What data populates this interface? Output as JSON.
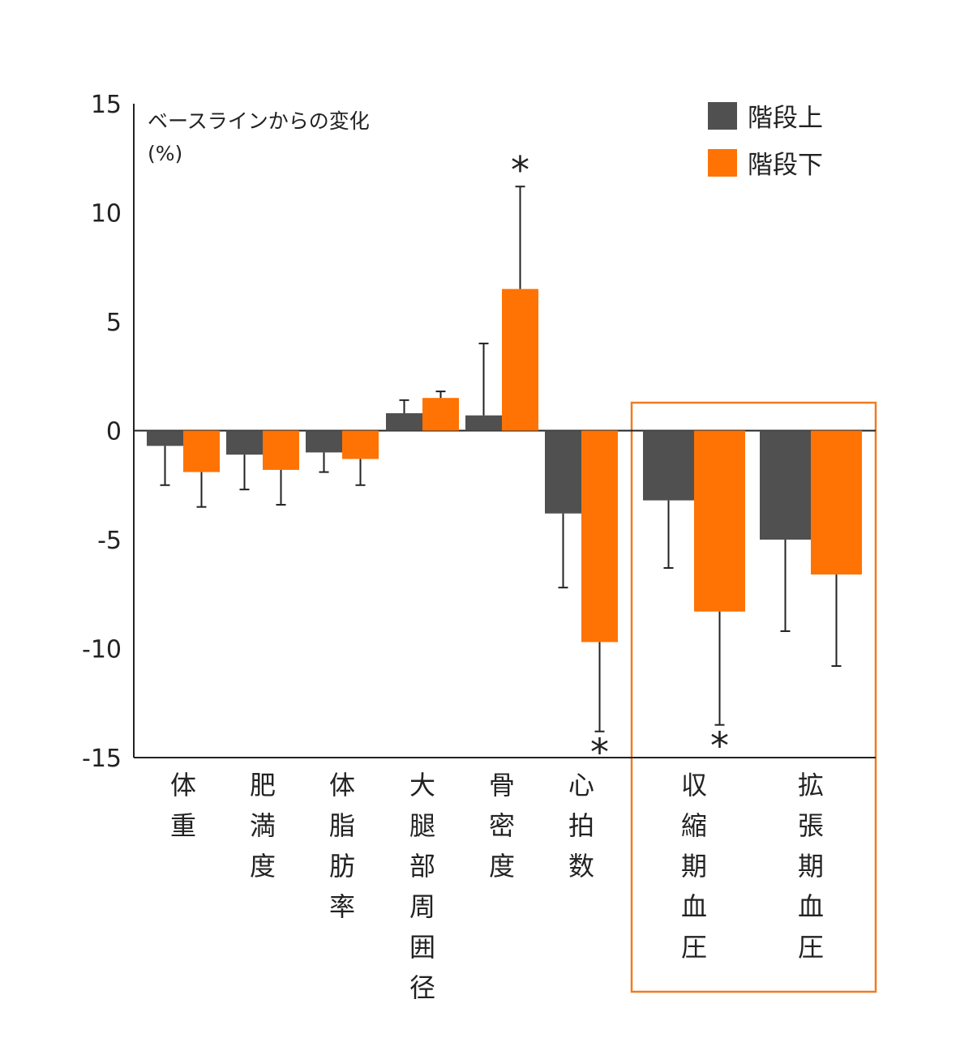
{
  "chart_data": {
    "type": "bar",
    "ylabel_line1": "ベースラインからの変化",
    "ylabel_line2": "(%)",
    "ylim": [
      -15,
      15
    ],
    "yticks": [
      "15",
      "10",
      "5",
      "0",
      "-5",
      "-10",
      "-15"
    ],
    "legend_position": "top-right",
    "grid": false,
    "categories": [
      "体重",
      "肥満度",
      "体脂肪率",
      "大腿部周囲径",
      "骨密度",
      "心拍数",
      "収縮期血圧",
      "拡張期血圧"
    ],
    "series": [
      {
        "name": "階段上",
        "color": "#505050",
        "values": [
          -0.7,
          -1.1,
          -1.0,
          0.8,
          0.7,
          -3.8,
          -3.2,
          -5.0
        ],
        "error": [
          1.8,
          1.6,
          0.9,
          0.6,
          3.3,
          3.4,
          3.1,
          4.2
        ],
        "significant": [
          false,
          false,
          false,
          false,
          false,
          false,
          false,
          false
        ]
      },
      {
        "name": "階段下",
        "color": "#ff7304",
        "values": [
          -1.9,
          -1.8,
          -1.3,
          1.5,
          6.5,
          -9.7,
          -8.3,
          -6.6
        ],
        "error": [
          1.6,
          1.6,
          1.2,
          0.3,
          4.7,
          4.1,
          5.2,
          4.2
        ],
        "significant": [
          false,
          false,
          false,
          false,
          true,
          true,
          true,
          false
        ]
      }
    ],
    "significance_marker": "*",
    "highlight_box": {
      "categories": [
        "収縮期血圧",
        "拡張期血圧"
      ],
      "color": "#f07b22"
    }
  }
}
